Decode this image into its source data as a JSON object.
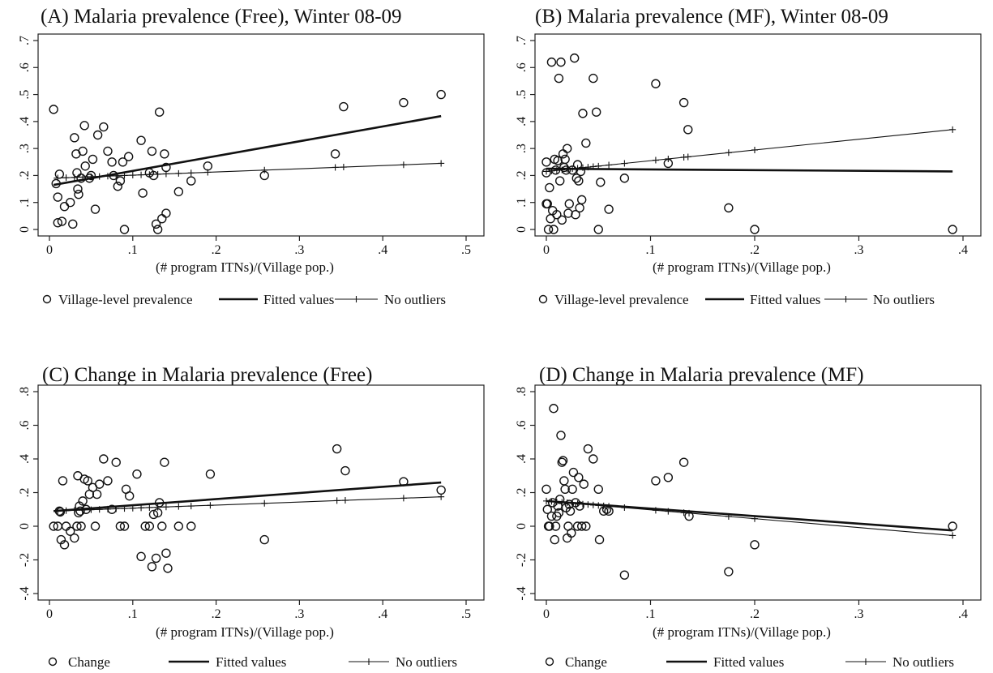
{
  "chart_data": [
    {
      "type": "scatter",
      "title": "(A) Malaria prevalence (Free), Winter 08-09",
      "xlabel": "(# program ITNs)/(Village pop.)",
      "ylabel": "",
      "xlim": [
        0,
        0.5
      ],
      "ylim": [
        0,
        0.7
      ],
      "xticks": [
        0,
        0.1,
        0.2,
        0.3,
        0.4,
        0.5
      ],
      "xtick_labels": [
        "0",
        ".1",
        ".2",
        ".3",
        ".4",
        ".5"
      ],
      "yticks": [
        0,
        0.1,
        0.2,
        0.3,
        0.4,
        0.5,
        0.6,
        0.7
      ],
      "ytick_labels": [
        "0",
        ".1",
        ".2",
        ".3",
        ".4",
        ".5",
        ".6",
        ".7"
      ],
      "legend": [
        "Village-level prevalence",
        "Fitted values",
        "No outliers"
      ],
      "points": [
        [
          0.005,
          0.445
        ],
        [
          0.008,
          0.17
        ],
        [
          0.01,
          0.12
        ],
        [
          0.01,
          0.025
        ],
        [
          0.012,
          0.205
        ],
        [
          0.015,
          0.03
        ],
        [
          0.018,
          0.085
        ],
        [
          0.025,
          0.1
        ],
        [
          0.028,
          0.02
        ],
        [
          0.03,
          0.34
        ],
        [
          0.032,
          0.28
        ],
        [
          0.033,
          0.21
        ],
        [
          0.034,
          0.15
        ],
        [
          0.035,
          0.13
        ],
        [
          0.038,
          0.19
        ],
        [
          0.04,
          0.29
        ],
        [
          0.042,
          0.385
        ],
        [
          0.043,
          0.235
        ],
        [
          0.048,
          0.19
        ],
        [
          0.05,
          0.2
        ],
        [
          0.052,
          0.26
        ],
        [
          0.055,
          0.075
        ],
        [
          0.058,
          0.35
        ],
        [
          0.065,
          0.38
        ],
        [
          0.07,
          0.29
        ],
        [
          0.075,
          0.25
        ],
        [
          0.077,
          0.2
        ],
        [
          0.082,
          0.16
        ],
        [
          0.085,
          0.18
        ],
        [
          0.088,
          0.25
        ],
        [
          0.09,
          0.0
        ],
        [
          0.095,
          0.27
        ],
        [
          0.11,
          0.33
        ],
        [
          0.112,
          0.135
        ],
        [
          0.12,
          0.21
        ],
        [
          0.123,
          0.29
        ],
        [
          0.125,
          0.2
        ],
        [
          0.128,
          0.02
        ],
        [
          0.13,
          0.0
        ],
        [
          0.132,
          0.435
        ],
        [
          0.135,
          0.04
        ],
        [
          0.138,
          0.28
        ],
        [
          0.14,
          0.06
        ],
        [
          0.14,
          0.23
        ],
        [
          0.155,
          0.14
        ],
        [
          0.17,
          0.18
        ],
        [
          0.19,
          0.235
        ],
        [
          0.258,
          0.2
        ],
        [
          0.343,
          0.28
        ],
        [
          0.353,
          0.455
        ],
        [
          0.425,
          0.47
        ],
        [
          0.47,
          0.5
        ]
      ],
      "fitted": [
        [
          0.005,
          0.165
        ],
        [
          0.47,
          0.42
        ]
      ],
      "no_outliers": [
        [
          0.005,
          0.19
        ],
        [
          0.47,
          0.245
        ]
      ],
      "no_outliers_marks": [
        0.01,
        0.02,
        0.03,
        0.04,
        0.05,
        0.06,
        0.07,
        0.08,
        0.09,
        0.1,
        0.11,
        0.12,
        0.13,
        0.14,
        0.155,
        0.17,
        0.19,
        0.258,
        0.343,
        0.353,
        0.425,
        0.47
      ]
    },
    {
      "type": "scatter",
      "title": "(B) Malaria prevalence (MF), Winter 08-09",
      "xlabel": "(# program ITNs)/(Village pop.)",
      "ylabel": "",
      "xlim": [
        0,
        0.4
      ],
      "ylim": [
        0,
        0.7
      ],
      "xticks": [
        0,
        0.1,
        0.2,
        0.3,
        0.4
      ],
      "xtick_labels": [
        "0",
        ".1",
        ".2",
        ".3",
        ".4"
      ],
      "yticks": [
        0,
        0.1,
        0.2,
        0.3,
        0.4,
        0.5,
        0.6,
        0.7
      ],
      "ytick_labels": [
        "0",
        ".1",
        ".2",
        ".3",
        ".4",
        ".5",
        ".6",
        ".7"
      ],
      "legend": [
        "Village-level prevalence",
        "Fitted values",
        "No outliers"
      ],
      "points": [
        [
          0.0,
          0.25
        ],
        [
          0.0,
          0.21
        ],
        [
          0.0,
          0.095
        ],
        [
          0.001,
          0.095
        ],
        [
          0.002,
          0.0
        ],
        [
          0.003,
          0.155
        ],
        [
          0.004,
          0.04
        ],
        [
          0.005,
          0.62
        ],
        [
          0.006,
          0.07
        ],
        [
          0.007,
          0.0
        ],
        [
          0.008,
          0.26
        ],
        [
          0.009,
          0.22
        ],
        [
          0.01,
          0.055
        ],
        [
          0.011,
          0.255
        ],
        [
          0.012,
          0.56
        ],
        [
          0.013,
          0.18
        ],
        [
          0.014,
          0.62
        ],
        [
          0.015,
          0.035
        ],
        [
          0.016,
          0.28
        ],
        [
          0.017,
          0.23
        ],
        [
          0.018,
          0.26
        ],
        [
          0.019,
          0.22
        ],
        [
          0.02,
          0.3
        ],
        [
          0.021,
          0.06
        ],
        [
          0.022,
          0.095
        ],
        [
          0.025,
          0.22
        ],
        [
          0.027,
          0.635
        ],
        [
          0.028,
          0.055
        ],
        [
          0.029,
          0.19
        ],
        [
          0.03,
          0.24
        ],
        [
          0.031,
          0.18
        ],
        [
          0.032,
          0.08
        ],
        [
          0.033,
          0.215
        ],
        [
          0.034,
          0.11
        ],
        [
          0.035,
          0.43
        ],
        [
          0.038,
          0.32
        ],
        [
          0.045,
          0.56
        ],
        [
          0.048,
          0.435
        ],
        [
          0.05,
          0.0
        ],
        [
          0.052,
          0.175
        ],
        [
          0.06,
          0.075
        ],
        [
          0.075,
          0.19
        ],
        [
          0.105,
          0.54
        ],
        [
          0.117,
          0.245
        ],
        [
          0.132,
          0.47
        ],
        [
          0.136,
          0.37
        ],
        [
          0.175,
          0.08
        ],
        [
          0.2,
          0.0
        ],
        [
          0.39,
          0.0
        ]
      ],
      "fitted": [
        [
          0.0,
          0.225
        ],
        [
          0.39,
          0.215
        ]
      ],
      "no_outliers": [
        [
          0.0,
          0.215
        ],
        [
          0.39,
          0.37
        ]
      ],
      "no_outliers_marks": [
        0.0,
        0.005,
        0.01,
        0.015,
        0.02,
        0.025,
        0.03,
        0.035,
        0.04,
        0.045,
        0.05,
        0.06,
        0.075,
        0.105,
        0.117,
        0.132,
        0.136,
        0.175,
        0.2,
        0.39
      ]
    },
    {
      "type": "scatter",
      "title": "(C) Change in Malaria prevalence (Free)",
      "xlabel": "(# program ITNs)/(Village pop.)",
      "ylabel": "",
      "xlim": [
        0,
        0.5
      ],
      "ylim": [
        -0.4,
        0.8
      ],
      "xticks": [
        0,
        0.1,
        0.2,
        0.3,
        0.4,
        0.5
      ],
      "xtick_labels": [
        "0",
        ".1",
        ".2",
        ".3",
        ".4",
        ".5"
      ],
      "yticks": [
        -0.4,
        -0.2,
        0,
        0.2,
        0.4,
        0.6,
        0.8
      ],
      "ytick_labels": [
        "-.4",
        "-.2",
        "0",
        ".2",
        ".4",
        ".6",
        ".8"
      ],
      "legend": [
        "Change",
        "Fitted values",
        "No outliers"
      ],
      "points": [
        [
          0.005,
          0.0
        ],
        [
          0.01,
          0.0
        ],
        [
          0.012,
          0.09
        ],
        [
          0.013,
          0.085
        ],
        [
          0.014,
          -0.08
        ],
        [
          0.016,
          0.27
        ],
        [
          0.018,
          -0.11
        ],
        [
          0.02,
          0.0
        ],
        [
          0.025,
          -0.03
        ],
        [
          0.03,
          -0.07
        ],
        [
          0.033,
          0.0
        ],
        [
          0.034,
          0.3
        ],
        [
          0.035,
          0.08
        ],
        [
          0.036,
          0.12
        ],
        [
          0.037,
          0.09
        ],
        [
          0.038,
          0.0
        ],
        [
          0.04,
          0.15
        ],
        [
          0.042,
          0.28
        ],
        [
          0.044,
          0.1
        ],
        [
          0.046,
          0.27
        ],
        [
          0.048,
          0.19
        ],
        [
          0.052,
          0.23
        ],
        [
          0.055,
          0.0
        ],
        [
          0.057,
          0.19
        ],
        [
          0.06,
          0.25
        ],
        [
          0.065,
          0.4
        ],
        [
          0.07,
          0.27
        ],
        [
          0.075,
          0.1
        ],
        [
          0.08,
          0.38
        ],
        [
          0.085,
          0.0
        ],
        [
          0.09,
          0.0
        ],
        [
          0.092,
          0.22
        ],
        [
          0.096,
          0.18
        ],
        [
          0.105,
          0.31
        ],
        [
          0.11,
          -0.18
        ],
        [
          0.115,
          0.0
        ],
        [
          0.12,
          0.0
        ],
        [
          0.123,
          -0.24
        ],
        [
          0.125,
          0.07
        ],
        [
          0.128,
          -0.19
        ],
        [
          0.13,
          0.08
        ],
        [
          0.132,
          0.14
        ],
        [
          0.135,
          0.0
        ],
        [
          0.138,
          0.38
        ],
        [
          0.14,
          -0.16
        ],
        [
          0.142,
          -0.25
        ],
        [
          0.155,
          0.0
        ],
        [
          0.17,
          0.0
        ],
        [
          0.193,
          0.31
        ],
        [
          0.258,
          -0.08
        ],
        [
          0.345,
          0.46
        ],
        [
          0.355,
          0.33
        ],
        [
          0.425,
          0.265
        ],
        [
          0.47,
          0.215
        ]
      ],
      "fitted": [
        [
          0.005,
          0.09
        ],
        [
          0.47,
          0.26
        ]
      ],
      "no_outliers": [
        [
          0.005,
          0.09
        ],
        [
          0.47,
          0.175
        ]
      ],
      "no_outliers_marks": [
        0.01,
        0.02,
        0.03,
        0.04,
        0.05,
        0.06,
        0.07,
        0.08,
        0.09,
        0.1,
        0.11,
        0.12,
        0.13,
        0.14,
        0.155,
        0.17,
        0.193,
        0.258,
        0.345,
        0.355,
        0.425,
        0.47
      ]
    },
    {
      "type": "scatter",
      "title": "(D) Change in Malaria prevalence (MF)",
      "xlabel": "(# program ITNs)/(Village pop.)",
      "ylabel": "",
      "xlim": [
        0,
        0.4
      ],
      "ylim": [
        -0.4,
        0.8
      ],
      "xticks": [
        0,
        0.1,
        0.2,
        0.3,
        0.4
      ],
      "xtick_labels": [
        "0",
        ".1",
        ".2",
        ".3",
        ".4"
      ],
      "yticks": [
        -0.4,
        -0.2,
        0,
        0.2,
        0.4,
        0.6,
        0.8
      ],
      "ytick_labels": [
        "-.4",
        "-.2",
        "0",
        ".2",
        ".4",
        ".6",
        ".8"
      ],
      "legend": [
        "Change",
        "Fitted values",
        "No outliers"
      ],
      "points": [
        [
          0.0,
          0.22
        ],
        [
          0.001,
          0.1
        ],
        [
          0.002,
          0.0
        ],
        [
          0.003,
          0.0
        ],
        [
          0.005,
          0.06
        ],
        [
          0.006,
          0.14
        ],
        [
          0.007,
          0.7
        ],
        [
          0.008,
          -0.08
        ],
        [
          0.009,
          0.0
        ],
        [
          0.01,
          0.06
        ],
        [
          0.011,
          0.12
        ],
        [
          0.012,
          0.08
        ],
        [
          0.013,
          0.16
        ],
        [
          0.014,
          0.54
        ],
        [
          0.015,
          0.38
        ],
        [
          0.016,
          0.39
        ],
        [
          0.017,
          0.27
        ],
        [
          0.018,
          0.22
        ],
        [
          0.019,
          0.11
        ],
        [
          0.02,
          -0.07
        ],
        [
          0.021,
          0.0
        ],
        [
          0.022,
          0.13
        ],
        [
          0.023,
          0.09
        ],
        [
          0.024,
          -0.04
        ],
        [
          0.025,
          0.22
        ],
        [
          0.026,
          0.32
        ],
        [
          0.028,
          0.14
        ],
        [
          0.03,
          0.0
        ],
        [
          0.031,
          0.29
        ],
        [
          0.032,
          0.12
        ],
        [
          0.034,
          0.0
        ],
        [
          0.036,
          0.25
        ],
        [
          0.038,
          0.0
        ],
        [
          0.04,
          0.46
        ],
        [
          0.045,
          0.4
        ],
        [
          0.05,
          0.22
        ],
        [
          0.051,
          -0.08
        ],
        [
          0.055,
          0.09
        ],
        [
          0.058,
          0.1
        ],
        [
          0.06,
          0.09
        ],
        [
          0.075,
          -0.29
        ],
        [
          0.105,
          0.27
        ],
        [
          0.117,
          0.29
        ],
        [
          0.132,
          0.38
        ],
        [
          0.137,
          0.06
        ],
        [
          0.175,
          -0.27
        ],
        [
          0.2,
          -0.11
        ],
        [
          0.39,
          0.0
        ]
      ],
      "fitted": [
        [
          0.0,
          0.15
        ],
        [
          0.39,
          -0.025
        ]
      ],
      "no_outliers": [
        [
          0.0,
          0.15
        ],
        [
          0.39,
          -0.055
        ]
      ],
      "no_outliers_marks": [
        0.0,
        0.005,
        0.01,
        0.015,
        0.02,
        0.025,
        0.03,
        0.035,
        0.04,
        0.045,
        0.05,
        0.055,
        0.06,
        0.075,
        0.105,
        0.117,
        0.132,
        0.137,
        0.175,
        0.2,
        0.39
      ]
    }
  ]
}
